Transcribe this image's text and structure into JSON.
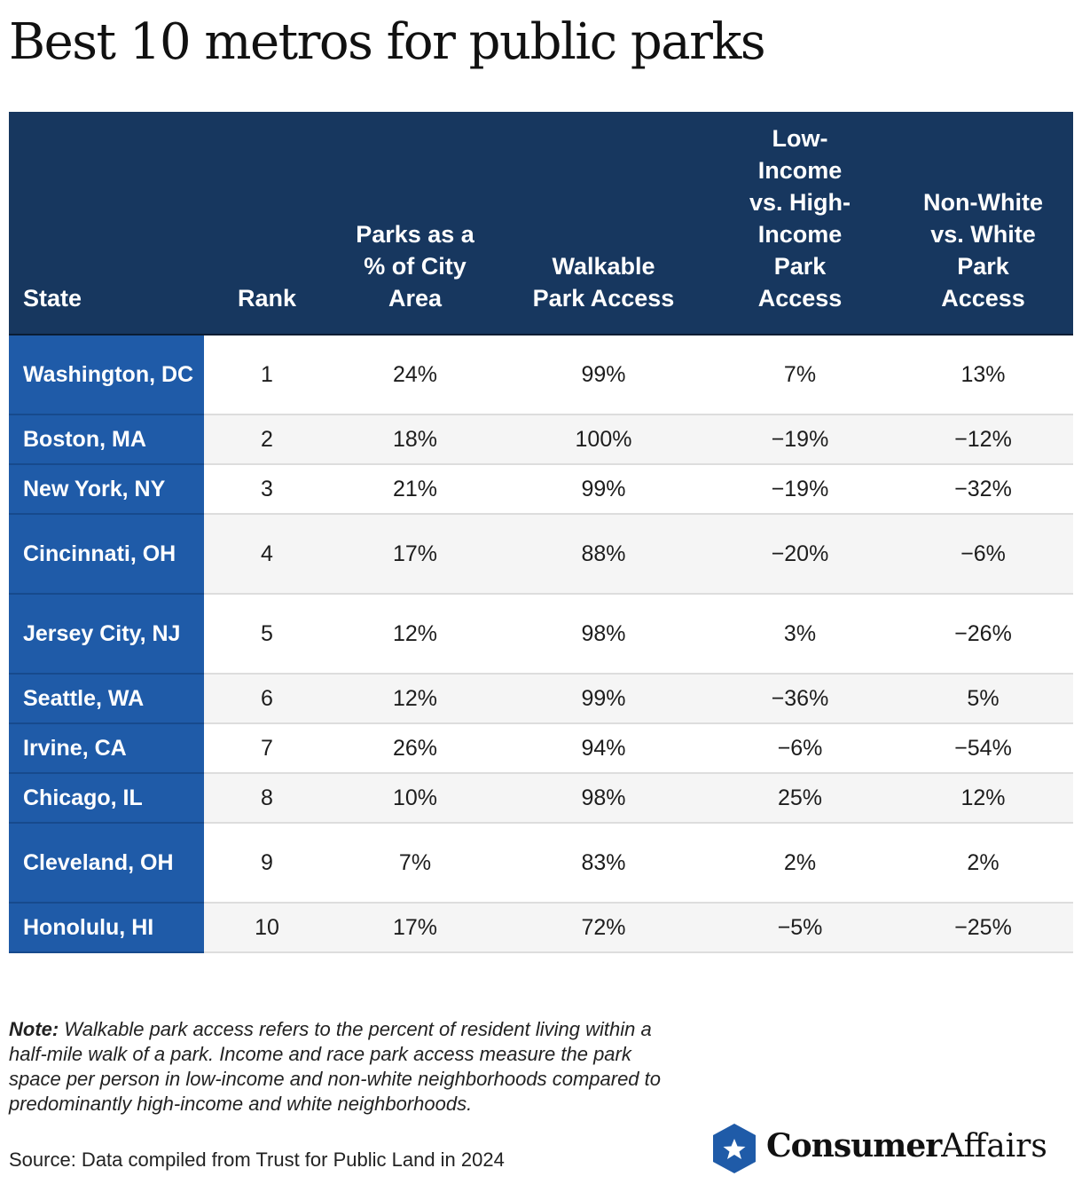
{
  "title": "Best 10 metros for public parks",
  "table": {
    "headers": {
      "state": "State",
      "rank": "Rank",
      "parks_pct": "Parks as a % of City Area",
      "walkable": "Walkable Park Access",
      "low_income": "Low-Income vs. High-Income Park Access",
      "non_white": "Non-White vs. White Park Access"
    },
    "rows": [
      {
        "state": "Washington, DC",
        "rank": "1",
        "parks_pct": "24%",
        "walkable": "99%",
        "low_income": "7%",
        "non_white": "13%"
      },
      {
        "state": "Boston, MA",
        "rank": "2",
        "parks_pct": "18%",
        "walkable": "100%",
        "low_income": "−19%",
        "non_white": "−12%"
      },
      {
        "state": "New York, NY",
        "rank": "3",
        "parks_pct": "21%",
        "walkable": "99%",
        "low_income": "−19%",
        "non_white": "−32%"
      },
      {
        "state": "Cincinnati, OH",
        "rank": "4",
        "parks_pct": "17%",
        "walkable": "88%",
        "low_income": "−20%",
        "non_white": "−6%"
      },
      {
        "state": "Jersey City, NJ",
        "rank": "5",
        "parks_pct": "12%",
        "walkable": "98%",
        "low_income": "3%",
        "non_white": "−26%"
      },
      {
        "state": "Seattle, WA",
        "rank": "6",
        "parks_pct": "12%",
        "walkable": "99%",
        "low_income": "−36%",
        "non_white": "5%"
      },
      {
        "state": "Irvine, CA",
        "rank": "7",
        "parks_pct": "26%",
        "walkable": "94%",
        "low_income": "−6%",
        "non_white": "−54%"
      },
      {
        "state": "Chicago, IL",
        "rank": "8",
        "parks_pct": "10%",
        "walkable": "98%",
        "low_income": "25%",
        "non_white": "12%"
      },
      {
        "state": "Cleveland, OH",
        "rank": "9",
        "parks_pct": "7%",
        "walkable": "83%",
        "low_income": "2%",
        "non_white": "2%"
      },
      {
        "state": "Honolulu, HI",
        "rank": "10",
        "parks_pct": "17%",
        "walkable": "72%",
        "low_income": "−5%",
        "non_white": "−25%"
      }
    ]
  },
  "note": {
    "label": "Note:",
    "text": "Walkable park access refers to the percent of resident living within a half-mile walk of a park. Income and race park access measure the park space per person in low-income and non-white neighborhoods compared to predominantly high-income and white neighborhoods."
  },
  "source": "Source: Data compiled from Trust for Public Land in 2024",
  "logo": {
    "text_bold": "Consumer",
    "text_regular": "Affairs",
    "icon": "star-shield-icon",
    "colors": {
      "badge": "#1f5ba8",
      "star": "#ffffff"
    }
  },
  "colors": {
    "header_bg": "#17375f",
    "state_bg": "#1f5ba8",
    "row_alt_bg": "#f5f5f5"
  }
}
